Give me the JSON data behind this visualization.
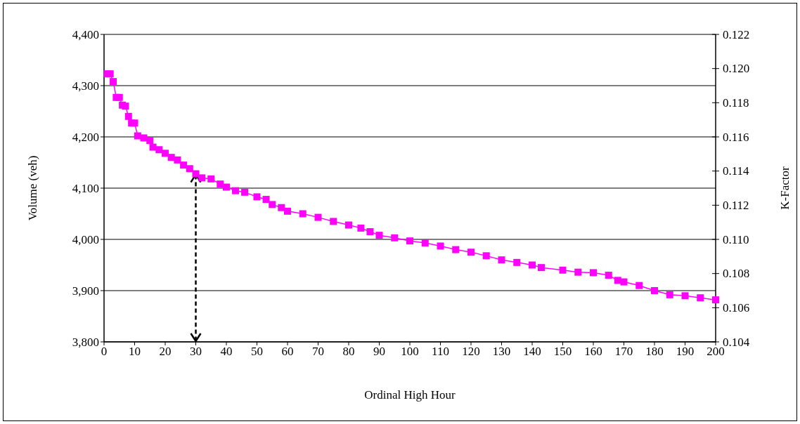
{
  "chart_data": {
    "type": "line",
    "xlabel": "Ordinal High Hour",
    "ylabel": "Volume (veh)",
    "y2label": "K-Factor",
    "x": [
      1,
      2,
      3,
      4,
      5,
      6,
      7,
      8,
      9,
      10,
      11,
      13,
      15,
      16,
      18,
      20,
      22,
      24,
      26,
      28,
      30,
      32,
      35,
      38,
      40,
      43,
      46,
      50,
      53,
      55,
      58,
      60,
      65,
      70,
      75,
      80,
      84,
      87,
      90,
      95,
      100,
      105,
      110,
      115,
      120,
      125,
      130,
      135,
      140,
      143,
      150,
      155,
      160,
      165,
      168,
      170,
      175,
      180,
      185,
      190,
      195,
      200
    ],
    "series": [
      {
        "color": "#ff00ff",
        "values": [
          4323,
          4323,
          4308,
          4277,
          4277,
          4262,
          4260,
          4240,
          4227,
          4227,
          4202,
          4198,
          4193,
          4180,
          4175,
          4168,
          4160,
          4155,
          4145,
          4138,
          4128,
          4120,
          4118,
          4108,
          4102,
          4095,
          4092,
          4083,
          4078,
          4068,
          4062,
          4055,
          4050,
          4043,
          4035,
          4028,
          4022,
          4015,
          4008,
          4003,
          3997,
          3993,
          3987,
          3980,
          3975,
          3968,
          3960,
          3955,
          3950,
          3945,
          3940,
          3936,
          3935,
          3930,
          3920,
          3917,
          3910,
          3900,
          3892,
          3890,
          3886,
          3882
        ]
      }
    ],
    "xlim": [
      0,
      200
    ],
    "xticks": [
      0,
      10,
      20,
      30,
      40,
      50,
      60,
      70,
      80,
      90,
      100,
      110,
      120,
      130,
      140,
      150,
      160,
      170,
      180,
      190,
      200
    ],
    "ylim": [
      3800,
      4400
    ],
    "yticks": [
      {
        "value": 3800,
        "label": "3,800"
      },
      {
        "value": 3900,
        "label": "3,900"
      },
      {
        "value": 4000,
        "label": "4,000"
      },
      {
        "value": 4100,
        "label": "4,100"
      },
      {
        "value": 4200,
        "label": "4,200"
      },
      {
        "value": 4300,
        "label": "4,300"
      },
      {
        "value": 4400,
        "label": "4,400"
      }
    ],
    "y2lim": [
      0.104,
      0.122
    ],
    "y2ticks": [
      {
        "value": 0.104,
        "label": "0.104"
      },
      {
        "value": 0.106,
        "label": "0.106"
      },
      {
        "value": 0.108,
        "label": "0.108"
      },
      {
        "value": 0.11,
        "label": "0.110"
      },
      {
        "value": 0.112,
        "label": "0.112"
      },
      {
        "value": 0.114,
        "label": "0.114"
      },
      {
        "value": 0.116,
        "label": "0.116"
      },
      {
        "value": 0.118,
        "label": "0.118"
      },
      {
        "value": 0.12,
        "label": "0.120"
      },
      {
        "value": 0.122,
        "label": "0.122"
      }
    ],
    "ref_lines": [
      {
        "axis": "x",
        "value": 30,
        "line_style": "dashed",
        "color": "#000000"
      }
    ],
    "grid": "y",
    "marker": "square"
  }
}
